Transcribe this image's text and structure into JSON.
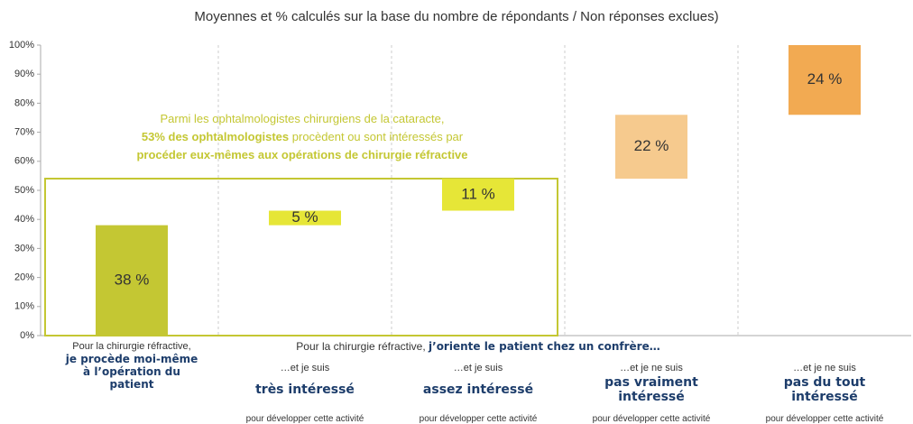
{
  "chart_data": {
    "type": "waterfall",
    "subtitle": "Moyennes et % calculés sur la base du nombre de répondants / Non réponses exclues)",
    "categories": [
      "je procède moi-même à l’opération du patient",
      "très intéressé",
      "assez intéressé",
      "pas vraiment intéressé",
      "pas du tout intéressé"
    ],
    "category_prefixes": [
      "Pour la chirurgie réfractive,",
      "…et je suis",
      "…et je suis",
      "…et je ne suis",
      "…et je ne suis"
    ],
    "category_suffixes": [
      null,
      "pour développer cette activité",
      "pour développer cette activité",
      "pour développer cette activité",
      "pour développer cette activité"
    ],
    "group_label": {
      "prefix": "Pour la chirurgie réfractive,",
      "emphasis": "j’oriente le patient chez un confrère…"
    },
    "values": [
      38,
      5,
      11,
      22,
      24
    ],
    "value_labels": [
      "38 %",
      "5 %",
      "11 %",
      "22 %",
      "24 %"
    ],
    "colors": [
      "#c4c733",
      "#e6e637",
      "#e6e637",
      "#f6ca8e",
      "#f2aa52"
    ],
    "ylim": [
      0,
      100
    ],
    "yticks": [
      {
        "value": 0,
        "label": "0%"
      },
      {
        "value": 10,
        "label": "10%"
      },
      {
        "value": 20,
        "label": "20%"
      },
      {
        "value": 30,
        "label": "30%"
      },
      {
        "value": 40,
        "label": "40%"
      },
      {
        "value": 50,
        "label": "50%"
      },
      {
        "value": 60,
        "label": "60%"
      },
      {
        "value": 70,
        "label": "70%"
      },
      {
        "value": 80,
        "label": "80%"
      },
      {
        "value": 90,
        "label": "90%"
      },
      {
        "value": 100,
        "label": "100%"
      }
    ],
    "annotation": {
      "line1": "Parmi les ophtalmologistes chirurgiens de la cataracte,",
      "line2_bold": "53% des ophtalmologistes",
      "line2_rest": "procèdent ou sont intéressés par",
      "line3_bold": "procéder eux-mêmes aux opérations de chirurgie réfractive"
    }
  }
}
